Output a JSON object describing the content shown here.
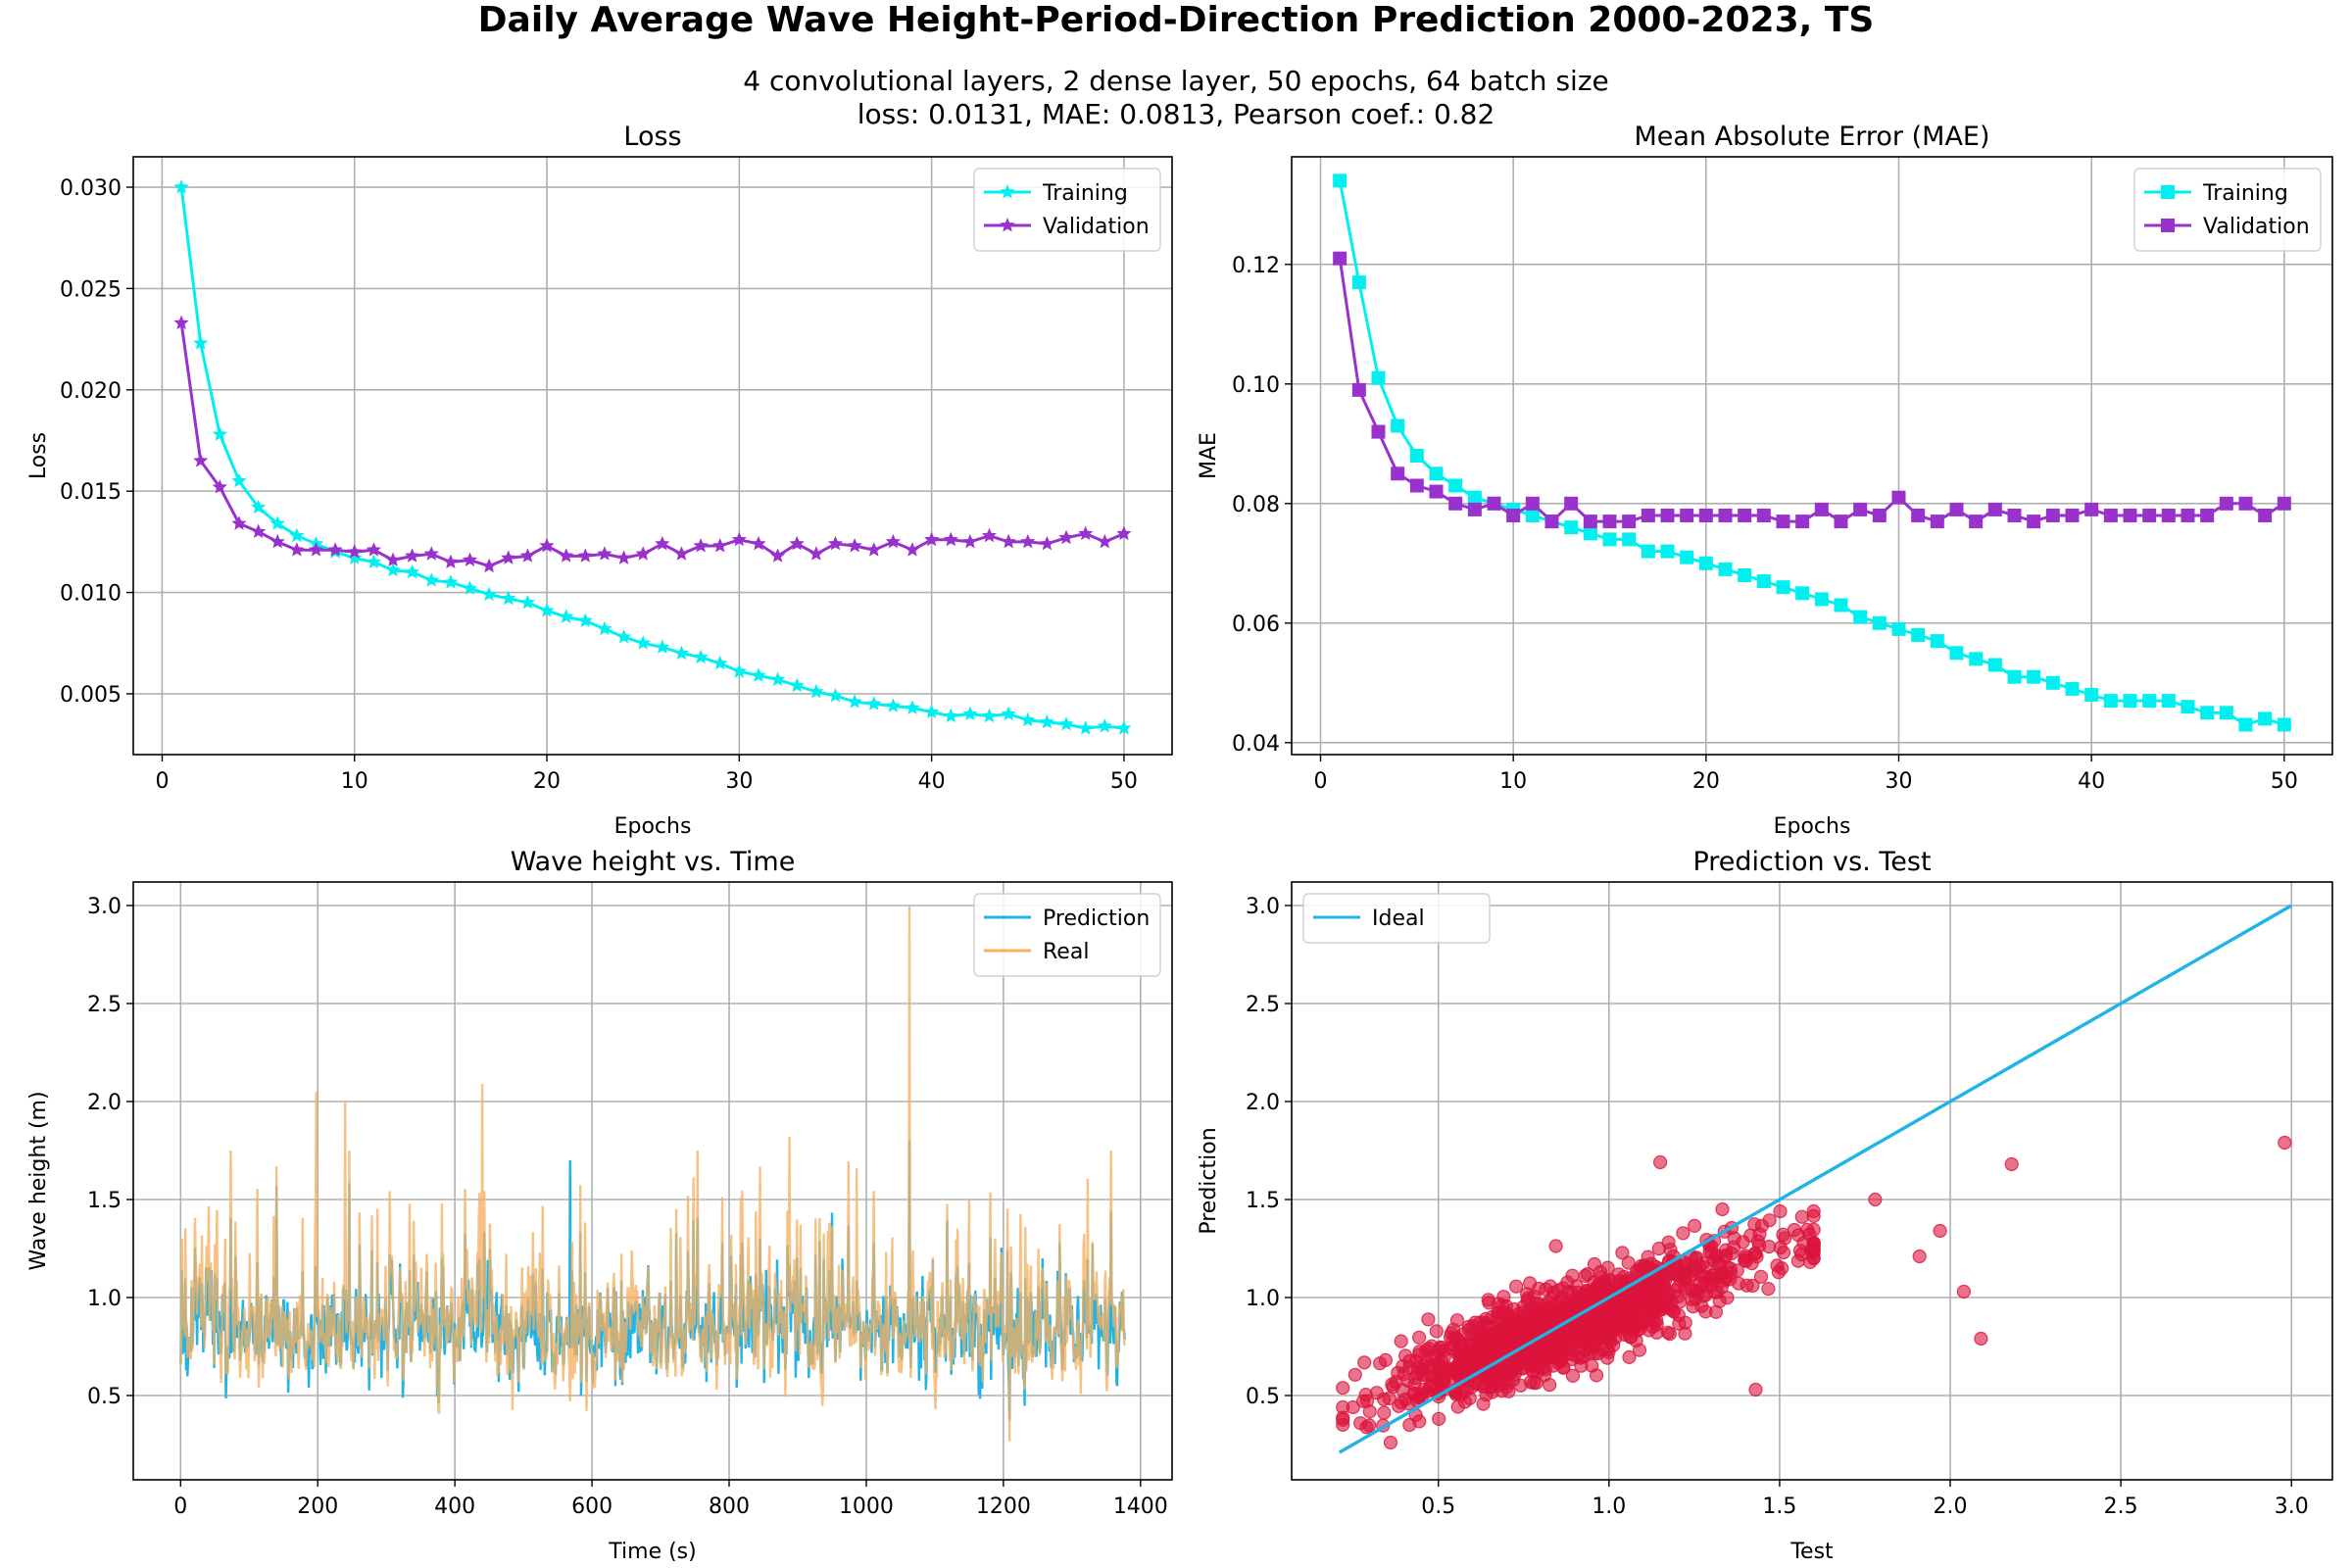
{
  "figure": {
    "suptitle": "Daily Average Wave Height-Period-Direction Prediction 2000-2023, TS",
    "subtitle_line1": "4 convolutional layers, 2 dense layer, 50 epochs, 64 batch size",
    "subtitle_line2": "loss: 0.0131, MAE: 0.0813, Pearson coef.: 0.82"
  },
  "colors": {
    "training": "#00f0f0",
    "validation": "#9932cc",
    "prediction": "#1fb3e6",
    "real": "#f5b060",
    "overlap": "#7aa276",
    "scatter": "#dc143c",
    "ideal": "#1fb3e6",
    "grid": "#b0b0b0"
  },
  "chart_data": [
    {
      "type": "line",
      "title": "Loss",
      "xlabel": "Epochs",
      "ylabel": "Loss",
      "xlim": [
        -1.5,
        52.5
      ],
      "ylim": [
        0.002,
        0.0315
      ],
      "xticks": [
        0,
        10,
        20,
        30,
        40,
        50
      ],
      "yticks": [
        0.005,
        0.01,
        0.015,
        0.02,
        0.025,
        0.03
      ],
      "ytick_labels": [
        "0.005",
        "0.010",
        "0.015",
        "0.020",
        "0.025",
        "0.030"
      ],
      "grid": true,
      "legend": "top-right",
      "marker": "star",
      "x": [
        1,
        2,
        3,
        4,
        5,
        6,
        7,
        8,
        9,
        10,
        11,
        12,
        13,
        14,
        15,
        16,
        17,
        18,
        19,
        20,
        21,
        22,
        23,
        24,
        25,
        26,
        27,
        28,
        29,
        30,
        31,
        32,
        33,
        34,
        35,
        36,
        37,
        38,
        39,
        40,
        41,
        42,
        43,
        44,
        45,
        46,
        47,
        48,
        49,
        50
      ],
      "series": [
        {
          "name": "Training",
          "values": [
            0.03,
            0.0223,
            0.0178,
            0.0155,
            0.0142,
            0.0134,
            0.0128,
            0.0124,
            0.012,
            0.0117,
            0.0115,
            0.0111,
            0.011,
            0.0106,
            0.0105,
            0.0102,
            0.0099,
            0.0097,
            0.0095,
            0.0091,
            0.0088,
            0.0086,
            0.0082,
            0.0078,
            0.0075,
            0.0073,
            0.007,
            0.0068,
            0.0065,
            0.0061,
            0.0059,
            0.0057,
            0.0054,
            0.0051,
            0.0049,
            0.0046,
            0.0045,
            0.0044,
            0.0043,
            0.0041,
            0.0039,
            0.004,
            0.0039,
            0.004,
            0.0037,
            0.0036,
            0.0035,
            0.0033,
            0.0034,
            0.0033
          ]
        },
        {
          "name": "Validation",
          "values": [
            0.0233,
            0.0165,
            0.0152,
            0.0134,
            0.013,
            0.0125,
            0.0121,
            0.0121,
            0.0121,
            0.012,
            0.0121,
            0.0116,
            0.0118,
            0.0119,
            0.0115,
            0.0116,
            0.0113,
            0.0117,
            0.0118,
            0.0123,
            0.0118,
            0.0118,
            0.0119,
            0.0117,
            0.0119,
            0.0124,
            0.0119,
            0.0123,
            0.0123,
            0.0126,
            0.0124,
            0.0118,
            0.0124,
            0.0119,
            0.0124,
            0.0123,
            0.0121,
            0.0125,
            0.0121,
            0.0126,
            0.0126,
            0.0125,
            0.0128,
            0.0125,
            0.0125,
            0.0124,
            0.0127,
            0.0129,
            0.0125,
            0.0129
          ]
        }
      ]
    },
    {
      "type": "line",
      "title": "Mean Absolute Error (MAE)",
      "xlabel": "Epochs",
      "ylabel": "MAE",
      "xlim": [
        -1.5,
        52.5
      ],
      "ylim": [
        0.038,
        0.138
      ],
      "xticks": [
        0,
        10,
        20,
        30,
        40,
        50
      ],
      "yticks": [
        0.04,
        0.06,
        0.08,
        0.1,
        0.12
      ],
      "ytick_labels": [
        "0.04",
        "0.06",
        "0.08",
        "0.10",
        "0.12"
      ],
      "grid": true,
      "legend": "top-right",
      "marker": "square",
      "x": [
        1,
        2,
        3,
        4,
        5,
        6,
        7,
        8,
        9,
        10,
        11,
        12,
        13,
        14,
        15,
        16,
        17,
        18,
        19,
        20,
        21,
        22,
        23,
        24,
        25,
        26,
        27,
        28,
        29,
        30,
        31,
        32,
        33,
        34,
        35,
        36,
        37,
        38,
        39,
        40,
        41,
        42,
        43,
        44,
        45,
        46,
        47,
        48,
        49,
        50
      ],
      "series": [
        {
          "name": "Training",
          "values": [
            0.134,
            0.117,
            0.101,
            0.093,
            0.088,
            0.085,
            0.083,
            0.081,
            0.08,
            0.079,
            0.078,
            0.077,
            0.076,
            0.075,
            0.074,
            0.074,
            0.072,
            0.072,
            0.071,
            0.07,
            0.069,
            0.068,
            0.067,
            0.066,
            0.065,
            0.064,
            0.063,
            0.061,
            0.06,
            0.059,
            0.058,
            0.057,
            0.055,
            0.054,
            0.053,
            0.051,
            0.051,
            0.05,
            0.049,
            0.048,
            0.047,
            0.047,
            0.047,
            0.047,
            0.046,
            0.045,
            0.045,
            0.043,
            0.044,
            0.043
          ]
        },
        {
          "name": "Validation",
          "values": [
            0.121,
            0.099,
            0.092,
            0.085,
            0.083,
            0.082,
            0.08,
            0.079,
            0.08,
            0.078,
            0.08,
            0.077,
            0.08,
            0.077,
            0.077,
            0.077,
            0.078,
            0.078,
            0.078,
            0.078,
            0.078,
            0.078,
            0.078,
            0.077,
            0.077,
            0.079,
            0.077,
            0.079,
            0.078,
            0.081,
            0.078,
            0.077,
            0.079,
            0.077,
            0.079,
            0.078,
            0.077,
            0.078,
            0.078,
            0.079,
            0.078,
            0.078,
            0.078,
            0.078,
            0.078,
            0.078,
            0.08,
            0.08,
            0.078,
            0.08
          ]
        }
      ]
    },
    {
      "type": "line",
      "title": "Wave height vs. Time",
      "xlabel": "Time (s)",
      "ylabel": "Wave height (m)",
      "xlim": [
        -69,
        1446
      ],
      "ylim": [
        0.07,
        3.12
      ],
      "xticks": [
        0,
        200,
        400,
        600,
        800,
        1000,
        1200,
        1400
      ],
      "yticks": [
        0.5,
        1.0,
        1.5,
        2.0,
        2.5,
        3.0
      ],
      "ytick_labels": [
        "0.5",
        "1.0",
        "1.5",
        "2.0",
        "2.5",
        "3.0"
      ],
      "grid": true,
      "legend": "top-right",
      "n_points": 1378,
      "series": [
        {
          "name": "Prediction",
          "mean": 0.84,
          "min": 0.27,
          "max": 1.8
        },
        {
          "name": "Real",
          "mean": 0.86,
          "min": 0.22,
          "max": 3.0
        }
      ],
      "peaks": [
        {
          "series": "Real",
          "x": 1063,
          "y": 3.0
        },
        {
          "series": "Real",
          "x": 888,
          "y": 1.82
        },
        {
          "series": "Real",
          "x": 440,
          "y": 2.09
        },
        {
          "series": "Real",
          "x": 198,
          "y": 2.05
        },
        {
          "series": "Real",
          "x": 240,
          "y": 2.0
        },
        {
          "series": "Prediction",
          "x": 568,
          "y": 1.7
        },
        {
          "series": "Prediction",
          "x": 1063,
          "y": 1.8
        }
      ]
    },
    {
      "type": "scatter",
      "title": "Prediction vs. Test",
      "xlabel": "Test",
      "ylabel": "Prediction",
      "xlim": [
        0.07,
        3.12
      ],
      "ylim": [
        0.07,
        3.12
      ],
      "xticks": [
        0.5,
        1.0,
        1.5,
        2.0,
        2.5,
        3.0
      ],
      "xtick_labels": [
        "0.5",
        "1.0",
        "1.5",
        "2.0",
        "2.5",
        "3.0"
      ],
      "yticks": [
        0.5,
        1.0,
        1.5,
        2.0,
        2.5,
        3.0
      ],
      "ytick_labels": [
        "0.5",
        "1.0",
        "1.5",
        "2.0",
        "2.5",
        "3.0"
      ],
      "grid": true,
      "legend": "top-left",
      "n_points": 1378,
      "ideal_line": {
        "name": "Ideal",
        "x": [
          0.21,
          3.0
        ],
        "y": [
          0.21,
          3.0
        ]
      },
      "highlighted_points": [
        {
          "x": 2.98,
          "y": 1.79
        },
        {
          "x": 2.18,
          "y": 1.68
        },
        {
          "x": 1.15,
          "y": 1.69
        },
        {
          "x": 2.09,
          "y": 0.79
        },
        {
          "x": 2.04,
          "y": 1.03
        },
        {
          "x": 1.97,
          "y": 1.34
        },
        {
          "x": 1.91,
          "y": 1.21
        },
        {
          "x": 1.78,
          "y": 1.5
        },
        {
          "x": 1.43,
          "y": 0.53
        },
        {
          "x": 0.36,
          "y": 0.26
        },
        {
          "x": 0.25,
          "y": 0.44
        }
      ]
    }
  ]
}
